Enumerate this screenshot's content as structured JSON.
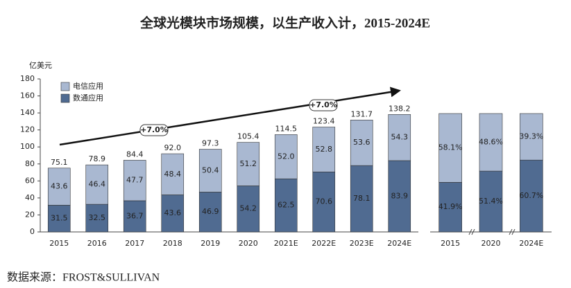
{
  "chart_data": [
    {
      "type": "bar",
      "stacked": true,
      "title": "全球光模块市场规模，以生产收入计，2015-2024E",
      "y_unit": "亿美元",
      "source": "数据来源：FROST&SULLIVAN",
      "categories": [
        "2015",
        "2016",
        "2017",
        "2018",
        "2019",
        "2020",
        "2021E",
        "2022E",
        "2023E",
        "2024E"
      ],
      "series": [
        {
          "name": "数通应用",
          "color": "#506b91",
          "values": [
            31.5,
            32.5,
            36.7,
            43.6,
            46.9,
            54.2,
            62.5,
            70.6,
            78.1,
            83.9
          ]
        },
        {
          "name": "电信应用",
          "color": "#a9b8d1",
          "values": [
            43.6,
            46.4,
            47.7,
            48.4,
            50.4,
            51.2,
            52.0,
            52.8,
            53.6,
            54.3
          ],
          "value_labels": [
            "43.6",
            "46.4",
            "47.7",
            "48.4",
            "50.4",
            "51.2",
            "52.0",
            "52.8",
            "53.6",
            "54.3"
          ]
        }
      ],
      "totals": [
        75.1,
        78.9,
        84.4,
        92.0,
        97.3,
        105.4,
        114.5,
        123.4,
        131.7,
        138.2
      ],
      "total_labels": [
        "75.1",
        "78.9",
        "84.4",
        "92.0",
        "97.3",
        "105.4",
        "114.5",
        "123.4",
        "131.7",
        "138.2"
      ],
      "annotations": [
        "+7.0%",
        "+7.0%"
      ],
      "ylim": [
        0,
        180
      ],
      "yticks": [
        0,
        20,
        40,
        60,
        80,
        100,
        120,
        140,
        160,
        180
      ],
      "legend": "top-left"
    },
    {
      "type": "bar",
      "stacked": true,
      "categories": [
        "2015",
        "2020",
        "2024E"
      ],
      "series": [
        {
          "name": "数通应用",
          "color": "#506b91",
          "values": [
            41.9,
            51.4,
            60.7
          ],
          "value_labels": [
            "41.9%",
            "51.4%",
            "60.7%"
          ]
        },
        {
          "name": "电信应用",
          "color": "#a9b8d1",
          "values": [
            58.1,
            48.6,
            39.3
          ],
          "value_labels": [
            "58.1%",
            "48.6%",
            "39.3%"
          ]
        }
      ],
      "ylim": [
        0,
        100
      ]
    }
  ]
}
